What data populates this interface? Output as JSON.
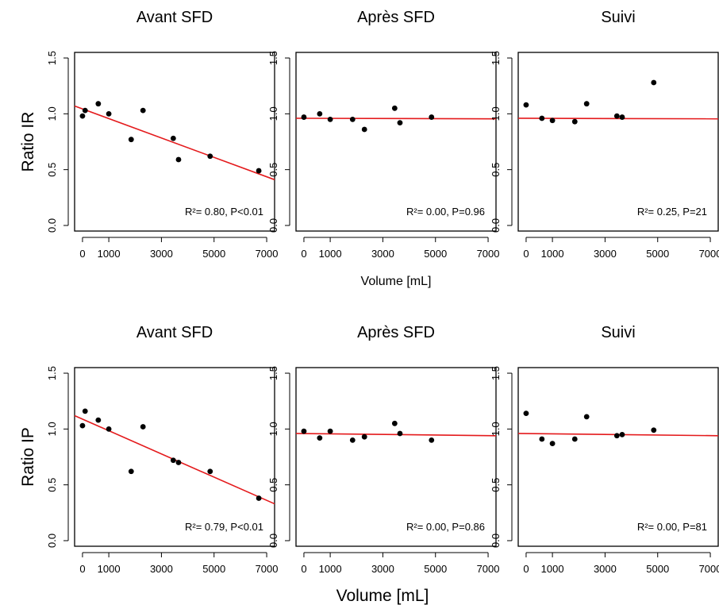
{
  "chart_data": [
    {
      "type": "scatter",
      "title": "Avant SFD",
      "ylabel": "Ratio IR",
      "xlabel": "",
      "xlim": [
        -300,
        7300
      ],
      "ylim": [
        -0.05,
        1.55
      ],
      "xticks": [
        0,
        1000,
        3000,
        5000,
        7000
      ],
      "yticks": [
        0.0,
        0.5,
        1.0,
        1.5
      ],
      "x": [
        0,
        100,
        600,
        1000,
        1850,
        2300,
        3450,
        3650,
        4850,
        6700
      ],
      "y": [
        0.98,
        1.03,
        1.09,
        1.0,
        0.77,
        1.03,
        0.78,
        0.59,
        0.62,
        0.49
      ],
      "fit_line": [
        [
          -300,
          1.07
        ],
        [
          7300,
          0.41
        ]
      ],
      "line_color": "#e41a1c",
      "annotation": "R²= 0.80, P<0.01"
    },
    {
      "type": "scatter",
      "title": "Après SFD",
      "ylabel": "",
      "xlabel": "Volume [mL]",
      "xlim": [
        -300,
        7300
      ],
      "ylim": [
        -0.05,
        1.55
      ],
      "xticks": [
        0,
        1000,
        3000,
        5000,
        7000
      ],
      "yticks": [
        0.0,
        0.5,
        1.0,
        1.5
      ],
      "x": [
        0,
        600,
        1000,
        1850,
        2300,
        3450,
        3650,
        4850
      ],
      "y": [
        0.97,
        1.0,
        0.95,
        0.95,
        0.86,
        1.05,
        0.92,
        0.97
      ],
      "fit_line": [
        [
          -300,
          0.96
        ],
        [
          7300,
          0.955
        ]
      ],
      "line_color": "#e41a1c",
      "annotation": "R²= 0.00, P=0.96"
    },
    {
      "type": "scatter",
      "title": "Suivi",
      "ylabel": "",
      "xlabel": "",
      "xlim": [
        -300,
        7300
      ],
      "ylim": [
        -0.05,
        1.55
      ],
      "xticks": [
        0,
        1000,
        3000,
        5000,
        7000
      ],
      "yticks": [
        0.0,
        0.5,
        1.0,
        1.5
      ],
      "x": [
        0,
        600,
        1000,
        1850,
        2300,
        3450,
        3650,
        4850
      ],
      "y": [
        1.08,
        0.96,
        0.94,
        0.93,
        1.09,
        0.98,
        0.97,
        1.28
      ],
      "fit_line": [
        [
          -300,
          0.96
        ],
        [
          7300,
          0.955
        ]
      ],
      "line_color": "#e41a1c",
      "annotation": "R²= 0.25, P=21"
    },
    {
      "type": "scatter",
      "title": "Avant SFD",
      "ylabel": "Ratio IP",
      "xlabel": "",
      "xlim": [
        -300,
        7300
      ],
      "ylim": [
        -0.05,
        1.55
      ],
      "xticks": [
        0,
        1000,
        3000,
        5000,
        7000
      ],
      "yticks": [
        0.0,
        0.5,
        1.0,
        1.5
      ],
      "x": [
        0,
        100,
        600,
        1000,
        1850,
        2300,
        3450,
        3650,
        4850,
        6700
      ],
      "y": [
        1.03,
        1.16,
        1.08,
        1.0,
        0.62,
        1.02,
        0.72,
        0.7,
        0.62,
        0.38
      ],
      "fit_line": [
        [
          -300,
          1.12
        ],
        [
          7300,
          0.33
        ]
      ],
      "line_color": "#e41a1c",
      "annotation": "R²= 0.79, P<0.01"
    },
    {
      "type": "scatter",
      "title": "Après SFD",
      "ylabel": "",
      "xlabel": "",
      "xlim": [
        -300,
        7300
      ],
      "ylim": [
        -0.05,
        1.55
      ],
      "xticks": [
        0,
        1000,
        3000,
        5000,
        7000
      ],
      "yticks": [
        0.0,
        0.5,
        1.0,
        1.5
      ],
      "x": [
        0,
        600,
        1000,
        1850,
        2300,
        3450,
        3650,
        4850
      ],
      "y": [
        0.98,
        0.92,
        0.98,
        0.9,
        0.93,
        1.05,
        0.96,
        0.9
      ],
      "fit_line": [
        [
          -300,
          0.96
        ],
        [
          7300,
          0.94
        ]
      ],
      "line_color": "#e41a1c",
      "annotation": "R²= 0.00, P=0.86"
    },
    {
      "type": "scatter",
      "title": "Suivi",
      "ylabel": "",
      "xlabel": "",
      "xlim": [
        -300,
        7300
      ],
      "ylim": [
        -0.05,
        1.55
      ],
      "xticks": [
        0,
        1000,
        3000,
        5000,
        7000
      ],
      "yticks": [
        0.0,
        0.5,
        1.0,
        1.5
      ],
      "x": [
        0,
        600,
        1000,
        1850,
        2300,
        3450,
        3650,
        4850
      ],
      "y": [
        1.14,
        0.91,
        0.87,
        0.91,
        1.11,
        0.94,
        0.95,
        0.99
      ],
      "fit_line": [
        [
          -300,
          0.96
        ],
        [
          7300,
          0.94
        ]
      ],
      "line_color": "#e41a1c",
      "annotation": "R²= 0.00, P=81"
    }
  ],
  "figure": {
    "bottom_xlabel": "Volume [mL]"
  }
}
